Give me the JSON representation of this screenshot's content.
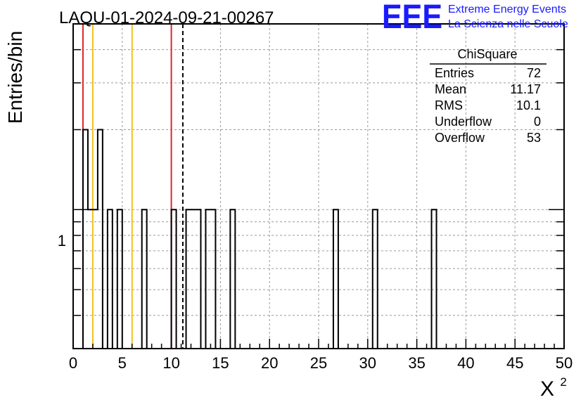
{
  "chart_data": {
    "type": "bar",
    "histogram_name": "ChiSquare",
    "title": "LAQU-01-2024-09-21-00267",
    "xlabel": "X",
    "xlabel_superscript": "2",
    "ylabel": "Entries/bin",
    "xlim": [
      0,
      50
    ],
    "ylog": true,
    "ylim": [
      0.3,
      5
    ],
    "x_ticks": [
      "0",
      "5",
      "10",
      "15",
      "20",
      "25",
      "30",
      "35",
      "40",
      "45",
      "50"
    ],
    "y_tick_label": "1",
    "grid": true,
    "bin_width": 0.5,
    "bins": [
      {
        "x": 1.0,
        "count": 2
      },
      {
        "x": 1.5,
        "count": 1
      },
      {
        "x": 2.0,
        "count": 1
      },
      {
        "x": 2.5,
        "count": 2
      },
      {
        "x": 3.5,
        "count": 1
      },
      {
        "x": 4.5,
        "count": 1
      },
      {
        "x": 7.0,
        "count": 1
      },
      {
        "x": 10.0,
        "count": 1
      },
      {
        "x": 11.5,
        "count": 1
      },
      {
        "x": 12.0,
        "count": 1
      },
      {
        "x": 12.5,
        "count": 1
      },
      {
        "x": 13.5,
        "count": 1
      },
      {
        "x": 14.0,
        "count": 1
      },
      {
        "x": 16.0,
        "count": 1
      },
      {
        "x": 26.5,
        "count": 1
      },
      {
        "x": 30.5,
        "count": 1
      },
      {
        "x": 36.5,
        "count": 1
      }
    ],
    "reference_lines": [
      {
        "name": "red-line-low",
        "x": 1.0,
        "color": "#e0242a"
      },
      {
        "name": "orange-line-low",
        "x": 2.0,
        "color": "#f2c21b"
      },
      {
        "name": "orange-line-high",
        "x": 6.0,
        "color": "#f2c21b"
      },
      {
        "name": "red-line-high",
        "x": 10.0,
        "color": "#e0242a"
      },
      {
        "name": "mean-dashed-line",
        "x": 11.17,
        "color": "#000000"
      }
    ],
    "stats": {
      "title": "ChiSquare",
      "rows": [
        {
          "label": "Entries",
          "value": "72"
        },
        {
          "label": "Mean",
          "value": "11.17"
        },
        {
          "label": "RMS",
          "value": "10.1"
        },
        {
          "label": "Underflow",
          "value": "0"
        },
        {
          "label": "Overflow",
          "value": "53"
        }
      ]
    }
  },
  "logo": {
    "text": "EEE",
    "line1": "Extreme Energy Events",
    "line2": "La Scienza nelle Scuole",
    "color": "#1a1aff"
  }
}
